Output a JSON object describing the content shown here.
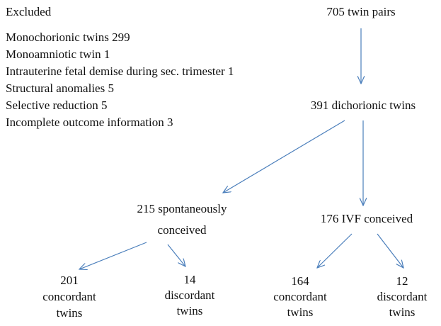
{
  "excluded": {
    "title": "Excluded",
    "items": [
      "Monochorionic twins 299",
      "Monoamniotic twin 1",
      "Intrauterine fetal demise during sec. trimester 1",
      "Structural anomalies 5",
      "Selective reduction 5",
      "Incomplete outcome information 3"
    ]
  },
  "nodes": [
    {
      "lines": [
        "705 twin pairs"
      ]
    },
    {
      "lines": [
        "391 dichorionic twins"
      ]
    },
    {
      "lines": [
        "215 spontaneously",
        "conceived"
      ]
    },
    {
      "lines": [
        "176 IVF conceived"
      ]
    },
    {
      "lines": [
        "201",
        "concordant",
        "twins"
      ]
    },
    {
      "lines": [
        "14",
        "discordant",
        "twins"
      ]
    },
    {
      "lines": [
        "164",
        "concordant",
        "twins"
      ]
    },
    {
      "lines": [
        "12",
        "discordant",
        "twins"
      ]
    }
  ]
}
